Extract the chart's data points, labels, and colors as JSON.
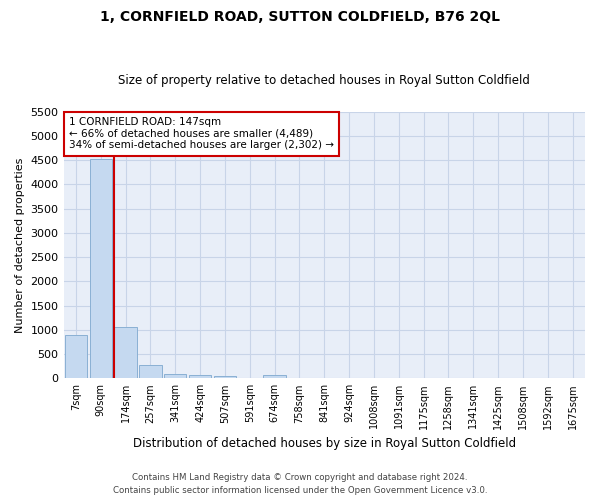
{
  "title": "1, CORNFIELD ROAD, SUTTON COLDFIELD, B76 2QL",
  "subtitle": "Size of property relative to detached houses in Royal Sutton Coldfield",
  "xlabel": "Distribution of detached houses by size in Royal Sutton Coldfield",
  "ylabel": "Number of detached properties",
  "footer1": "Contains HM Land Registry data © Crown copyright and database right 2024.",
  "footer2": "Contains public sector information licensed under the Open Government Licence v3.0.",
  "bar_labels": [
    "7sqm",
    "90sqm",
    "174sqm",
    "257sqm",
    "341sqm",
    "424sqm",
    "507sqm",
    "591sqm",
    "674sqm",
    "758sqm",
    "841sqm",
    "924sqm",
    "1008sqm",
    "1091sqm",
    "1175sqm",
    "1258sqm",
    "1341sqm",
    "1425sqm",
    "1508sqm",
    "1592sqm",
    "1675sqm"
  ],
  "bar_values": [
    900,
    4530,
    1050,
    275,
    90,
    75,
    55,
    0,
    65,
    0,
    0,
    0,
    0,
    0,
    0,
    0,
    0,
    0,
    0,
    0,
    0
  ],
  "bar_color": "#c5d9f0",
  "bar_edge_color": "#8ab0d4",
  "highlight_index": 2,
  "highlight_line_color": "#cc0000",
  "annotation_line1": "1 CORNFIELD ROAD: 147sqm",
  "annotation_line2": "← 66% of detached houses are smaller (4,489)",
  "annotation_line3": "34% of semi-detached houses are larger (2,302) →",
  "annotation_box_color": "#cc0000",
  "ylim": [
    0,
    5500
  ],
  "yticks": [
    0,
    500,
    1000,
    1500,
    2000,
    2500,
    3000,
    3500,
    4000,
    4500,
    5000,
    5500
  ],
  "grid_color": "#c8d4e8",
  "plot_bg_color": "#e8eef8",
  "fig_bg_color": "#ffffff"
}
